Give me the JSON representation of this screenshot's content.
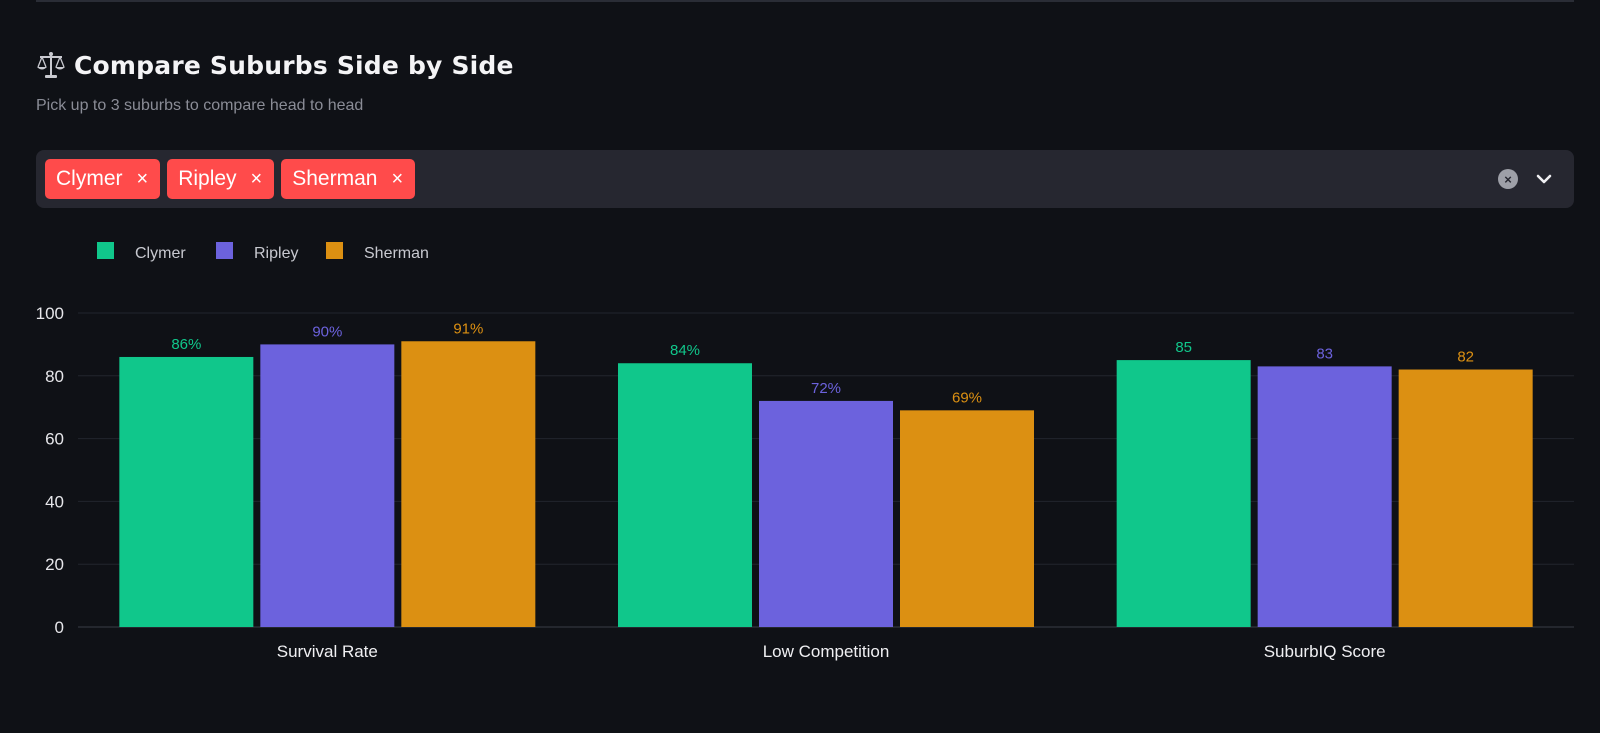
{
  "header": {
    "title": "Compare Suburbs Side by Side",
    "subtitle": "Pick up to 3 suburbs to compare head to head",
    "icon": "balance-scale-icon"
  },
  "selector": {
    "chips": [
      "Clymer",
      "Ripley",
      "Sherman"
    ],
    "remove_glyph": "×",
    "clear_glyph": "×",
    "chip_color": "#ff4b4b"
  },
  "chart_data": {
    "type": "bar",
    "categories": [
      "Survival Rate",
      "Low Competition",
      "SuburbIQ Score"
    ],
    "series": [
      {
        "name": "Clymer",
        "color": "#10c78b",
        "values": [
          86,
          84,
          85
        ],
        "labels": [
          "86%",
          "84%",
          "85"
        ]
      },
      {
        "name": "Ripley",
        "color": "#6c62dd",
        "values": [
          90,
          72,
          83
        ],
        "labels": [
          "90%",
          "72%",
          "83"
        ]
      },
      {
        "name": "Sherman",
        "color": "#dc9012",
        "values": [
          91,
          69,
          82
        ],
        "labels": [
          "91%",
          "69%",
          "82"
        ]
      }
    ],
    "ylim": [
      0,
      100
    ],
    "yticks": [
      0,
      20,
      40,
      60,
      80,
      100
    ],
    "grid": true,
    "legend": "top-left"
  }
}
